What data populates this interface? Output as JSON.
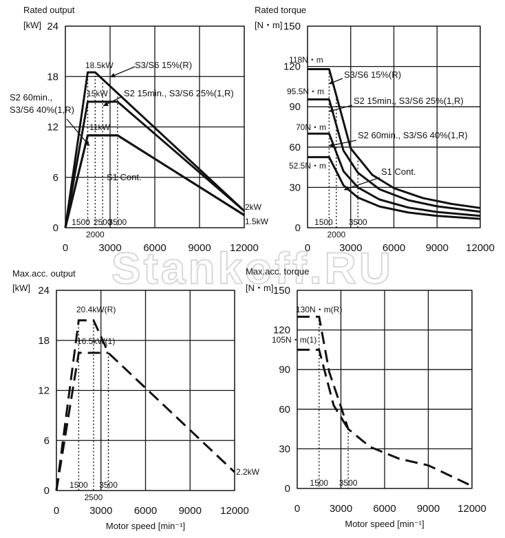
{
  "watermark": "Stankoff.RU",
  "shared_xlabel": "Motor speed [min⁻¹]",
  "colors": {
    "line": "#111111",
    "grid": "#111111",
    "background": "#ffffff",
    "watermark": "#d8d8d8"
  },
  "chart_data": [
    {
      "type": "line",
      "title": "Rated output",
      "unit": "[kW]",
      "xlim": [
        0,
        12000
      ],
      "ylim": [
        0,
        24
      ],
      "xticks": [
        "0",
        "3000",
        "6000",
        "9000",
        "12000"
      ],
      "yticks": [
        "0",
        "6",
        "12",
        "18",
        "24"
      ],
      "grid": true,
      "series": [
        {
          "name": "S3/S6 15%(R)",
          "style": "solid",
          "x": [
            0,
            1500,
            2000,
            12000
          ],
          "y": [
            0,
            18.5,
            18.5,
            2
          ]
        },
        {
          "name": "S2 15min., S3/S6 25%(1,R)",
          "style": "solid",
          "x": [
            0,
            1500,
            3500,
            12000
          ],
          "y": [
            0,
            15,
            15,
            2
          ]
        },
        {
          "name": "S2 60min., S3/S6 40%(1,R)",
          "style": "solid",
          "x": [
            0,
            1500,
            3500,
            12000
          ],
          "y": [
            0,
            11,
            11,
            1.5
          ]
        },
        {
          "name": "S1 Cont.",
          "style": "solid",
          "x": [
            0,
            1500,
            3500,
            12000
          ],
          "y": [
            0,
            11,
            11,
            1.5
          ]
        }
      ],
      "speed_markers": [
        {
          "label": "1500",
          "x": 1500
        },
        {
          "label": "2000",
          "x": 2000
        },
        {
          "label": "2500",
          "x": 2500
        },
        {
          "label": "3500",
          "x": 3500
        }
      ],
      "annotations": [
        "18.5kW",
        "15kW",
        "11kW",
        "2kW",
        "1.5kW",
        "S3/S6 15%(R)",
        "S2 15min., S3/S6 25%(1,R)",
        "S2 60min.,",
        "S3/S6 40%(1,R)",
        "S1 Cont."
      ]
    },
    {
      "type": "line",
      "title": "Rated torque",
      "unit": "[N・m]",
      "xlim": [
        0,
        12000
      ],
      "ylim": [
        0,
        150
      ],
      "xticks": [
        "0",
        "3000",
        "6000",
        "9000",
        "12000"
      ],
      "yticks": [
        "0",
        "30",
        "60",
        "90",
        "120",
        "150"
      ],
      "grid": true,
      "series": [
        {
          "name": "S3/S6 15%(R)",
          "style": "solid",
          "x": [
            0,
            1500,
            3000,
            4500,
            6000,
            8000,
            10000,
            12000
          ],
          "y": [
            118,
            118,
            59,
            39.3,
            29.5,
            22.1,
            17.7,
            14.7
          ]
        },
        {
          "name": "S2 15min., S3/S6 25%(1,R)",
          "style": "solid",
          "x": [
            0,
            1500,
            2500,
            3500,
            5000,
            7000,
            9000,
            12000
          ],
          "y": [
            95.5,
            95.5,
            57.3,
            40.9,
            28.6,
            20.5,
            15.9,
            11.9
          ]
        },
        {
          "name": "S2 60min., S3/S6 40%(1,R)",
          "style": "solid",
          "x": [
            0,
            1500,
            2500,
            3500,
            5000,
            7000,
            9000,
            12000
          ],
          "y": [
            70,
            70,
            42,
            30,
            21,
            15,
            11.7,
            8.8
          ]
        },
        {
          "name": "S1 Cont.",
          "style": "solid",
          "x": [
            0,
            1500,
            2500,
            3500,
            5000,
            7000,
            9000,
            12000
          ],
          "y": [
            52.5,
            52.5,
            31.5,
            22.5,
            15.8,
            11.3,
            8.8,
            6.6
          ]
        }
      ],
      "speed_markers": [
        {
          "label": "1500",
          "x": 1500
        },
        {
          "label": "2000",
          "x": 2000
        },
        {
          "label": "3500",
          "x": 3500
        }
      ],
      "annotations": [
        "118N・m",
        "95.5N・m",
        "70N・m",
        "52.5N・m",
        "S3/S6 15%(R)",
        "S2 15min., S3/S6 25%(1,R)",
        "S2 60min., S3/S6 40%(1,R)",
        "S1 Cont."
      ]
    },
    {
      "type": "line",
      "title": "Max.acc. output",
      "unit": "[kW]",
      "xlim": [
        0,
        12000
      ],
      "ylim": [
        0,
        24
      ],
      "xticks": [
        "0",
        "3000",
        "6000",
        "9000",
        "12000"
      ],
      "yticks": [
        "0",
        "6",
        "12",
        "18",
        "24"
      ],
      "grid": true,
      "xlabel": "Motor speed [min⁻¹]",
      "series": [
        {
          "name": "20.4kW(R)",
          "style": "dashed",
          "x": [
            0,
            1500,
            2500,
            3500,
            12000
          ],
          "y": [
            0,
            20.4,
            20.4,
            16.5,
            2.2
          ]
        },
        {
          "name": "16.5kW(1)",
          "style": "dashed",
          "x": [
            0,
            1500,
            3500
          ],
          "y": [
            0,
            16.5,
            16.5
          ]
        }
      ],
      "speed_markers": [
        {
          "label": "1500",
          "x": 1500
        },
        {
          "label": "2500",
          "x": 2500
        },
        {
          "label": "3500",
          "x": 3500
        }
      ],
      "annotations": [
        "20.4kW(R)",
        "16.5kW(1)",
        "2.2kW"
      ]
    },
    {
      "type": "line",
      "title": "Max.acc. torque",
      "unit": "[N・m]",
      "xlim": [
        0,
        12000
      ],
      "ylim": [
        0,
        150
      ],
      "xticks": [
        "0",
        "3000",
        "6000",
        "9000",
        "12000"
      ],
      "yticks": [
        "0",
        "30",
        "60",
        "90",
        "120",
        "150"
      ],
      "grid": true,
      "xlabel": "Motor speed [min⁻¹]",
      "series": [
        {
          "name": "130N・m(R)",
          "style": "dashed",
          "x": [
            0,
            1500,
            2200,
            3000,
            3500,
            5000,
            7000,
            9000,
            12000
          ],
          "y": [
            130,
            130,
            88,
            62,
            45,
            31.5,
            22.5,
            17.5,
            1.8
          ]
        },
        {
          "name": "105N・m(1)",
          "style": "dashed",
          "x": [
            0,
            1500,
            2500,
            3500
          ],
          "y": [
            105,
            105,
            63,
            45
          ]
        }
      ],
      "speed_markers": [
        {
          "label": "1500",
          "x": 1500
        },
        {
          "label": "3500",
          "x": 3500
        }
      ],
      "annotations": [
        "130N・m(R)",
        "105N・m(1)"
      ]
    }
  ]
}
